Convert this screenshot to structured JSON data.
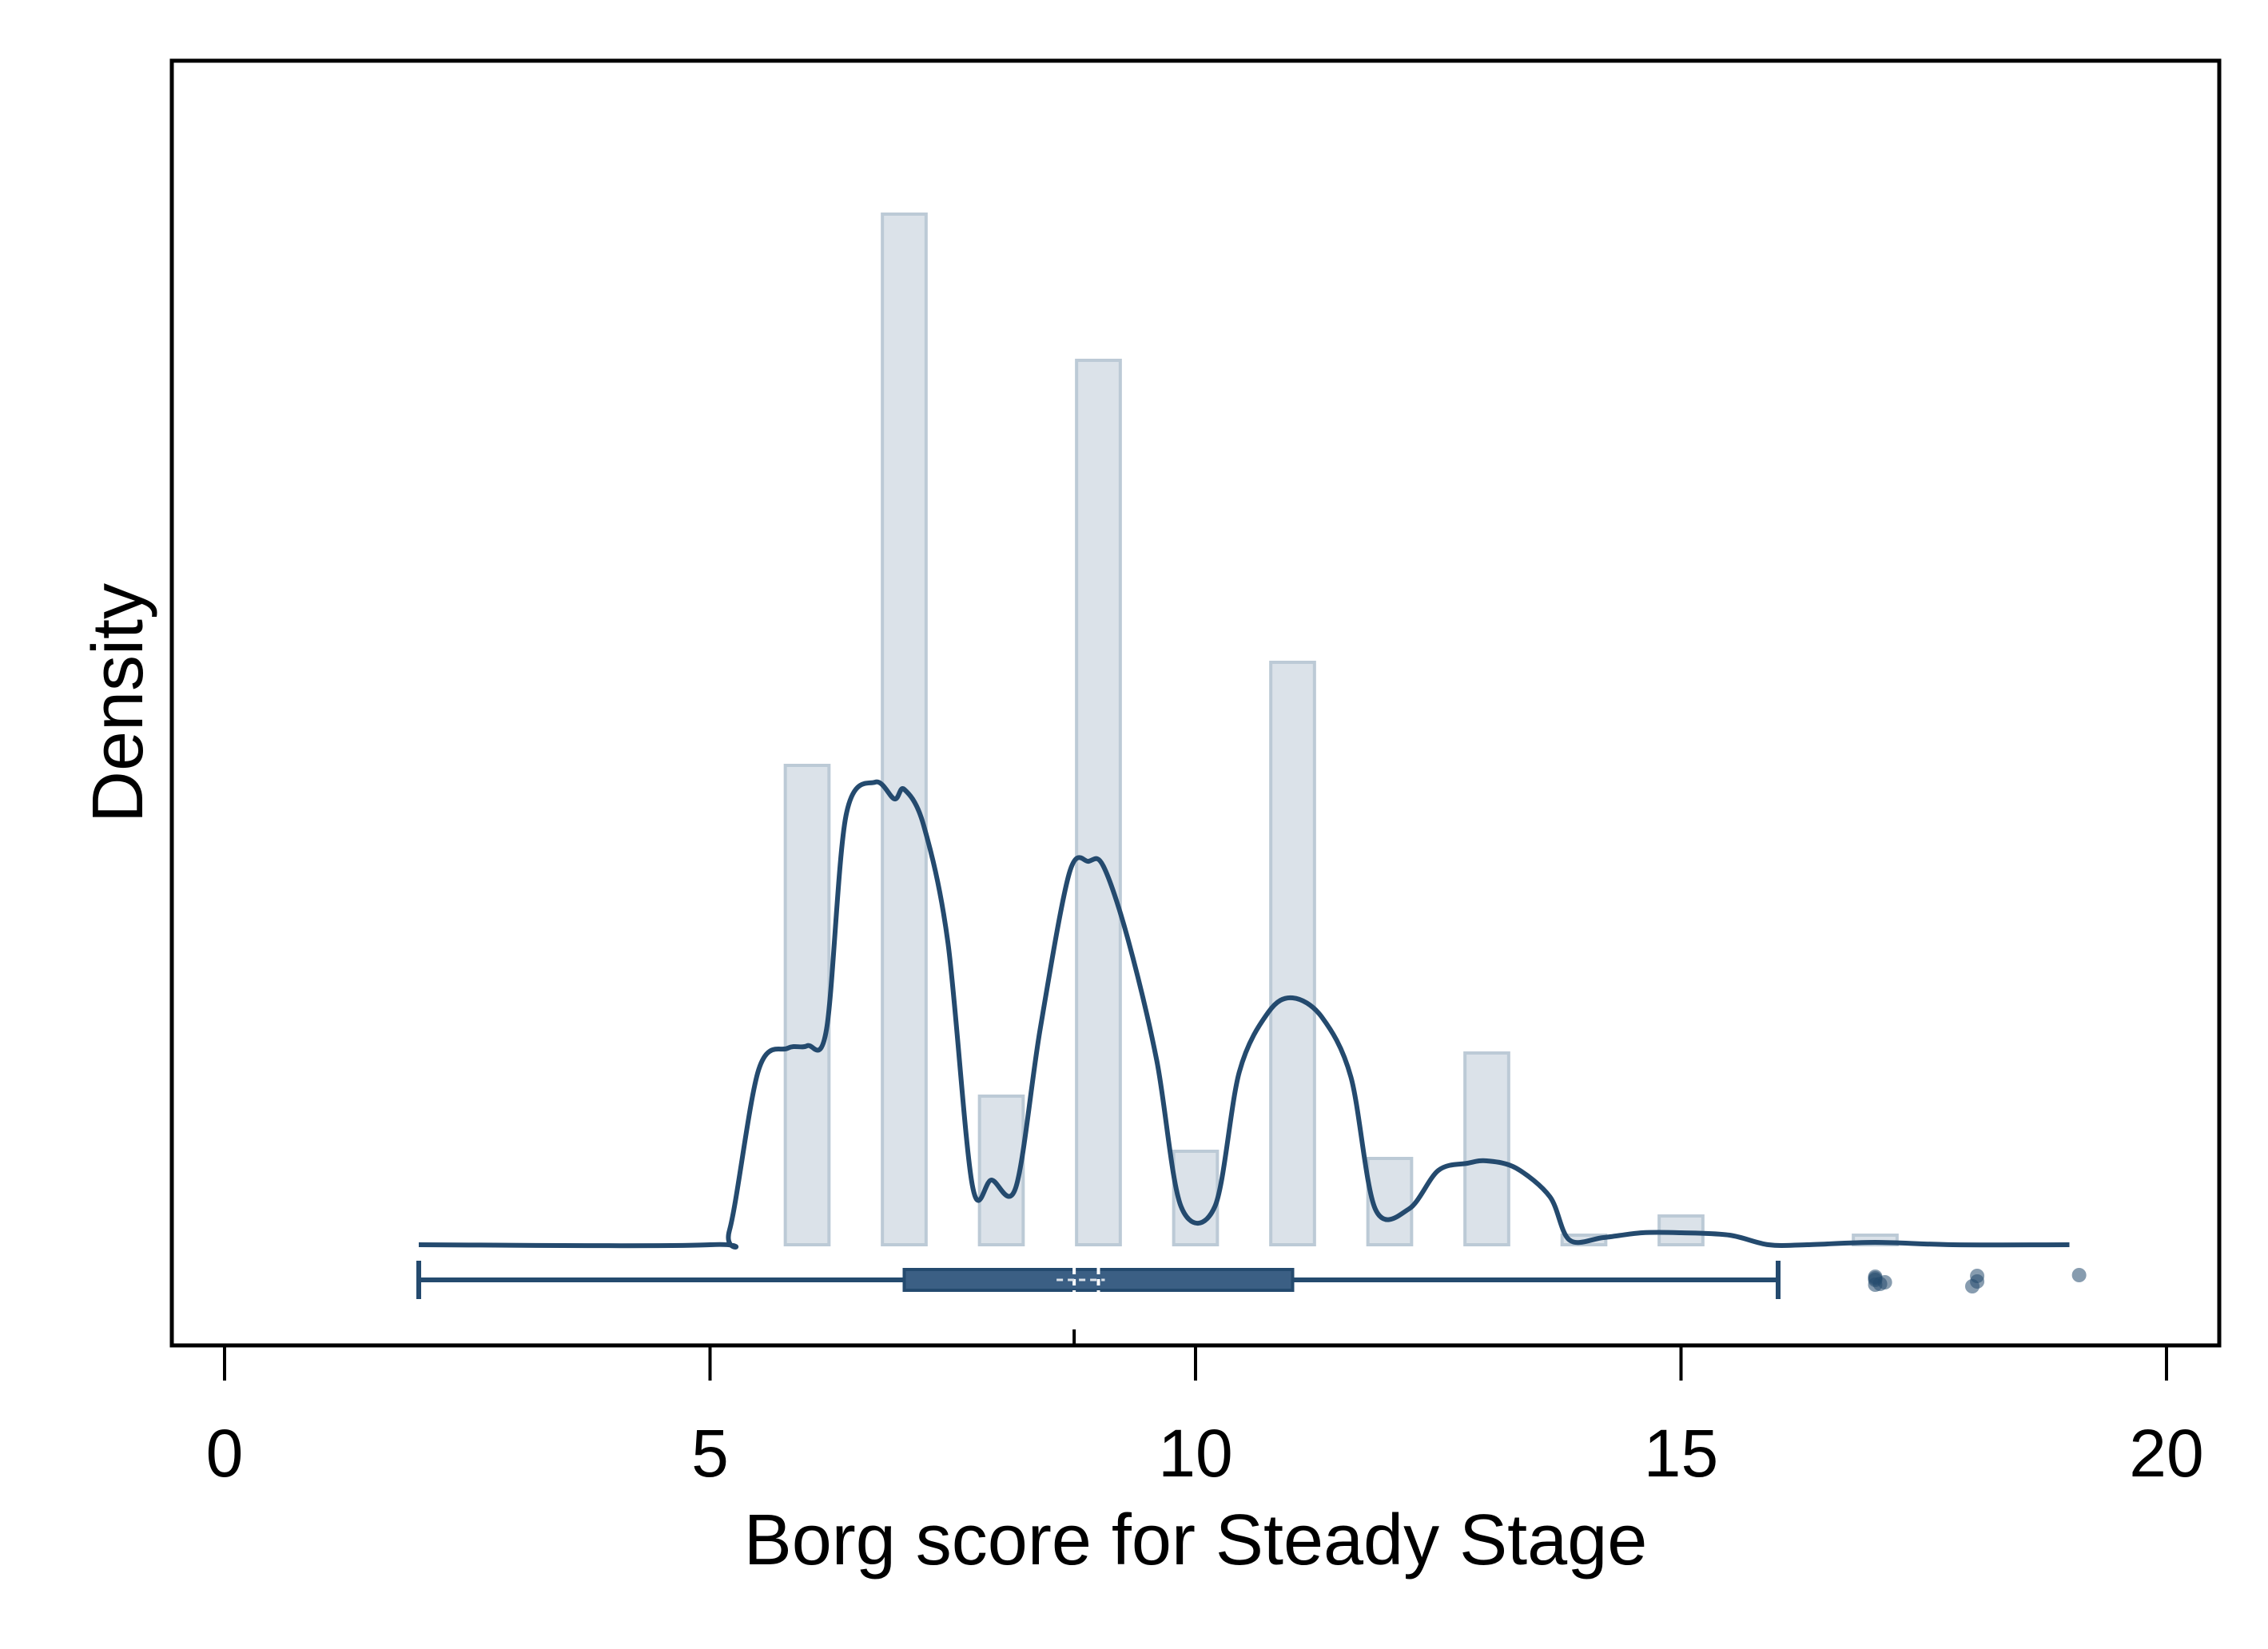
{
  "chart_data": {
    "type": "histogram",
    "title": "",
    "xlabel": "Borg score for Steady Stage",
    "ylabel": "Density",
    "xlim": [
      -0.5,
      20.5
    ],
    "x_ticks": [
      0,
      5,
      10,
      15,
      20
    ],
    "x_tick_labels": [
      "0",
      "5",
      "10",
      "15",
      "20"
    ],
    "y_axis_labels_shown": false,
    "colors": {
      "bar_fill": "#dbe2e9",
      "bar_stroke": "#bccad6",
      "accent": "#244a6e",
      "box_fill": "#3b5f84"
    },
    "histogram": {
      "bin_width": 0.45,
      "bins": [
        {
          "center": 6.0,
          "density": 0.2
        },
        {
          "center": 7.0,
          "density": 0.43
        },
        {
          "center": 8.0,
          "density": 0.062
        },
        {
          "center": 9.0,
          "density": 0.369
        },
        {
          "center": 10.0,
          "density": 0.039
        },
        {
          "center": 11.0,
          "density": 0.243
        },
        {
          "center": 12.0,
          "density": 0.036
        },
        {
          "center": 13.0,
          "density": 0.08
        },
        {
          "center": 14.0,
          "density": 0.004
        },
        {
          "center": 15.0,
          "density": 0.012
        },
        {
          "center": 17.0,
          "density": 0.004
        }
      ]
    },
    "density_curve": {
      "x": [
        2.0,
        5.0,
        5.2,
        5.5,
        5.8,
        6.0,
        6.2,
        6.4,
        6.7,
        6.9,
        7.0,
        7.2,
        7.45,
        7.7,
        7.9,
        8.15,
        8.4,
        8.7,
        8.9,
        9.05,
        9.3,
        9.6,
        9.85,
        10.2,
        10.45,
        10.75,
        11.0,
        11.3,
        11.6,
        11.85,
        12.2,
        12.5,
        12.8,
        13.0,
        13.3,
        13.65,
        13.85,
        14.2,
        14.6,
        15.0,
        15.5,
        15.9,
        16.3,
        17.0,
        17.8,
        19.0
      ],
      "y": [
        0.0,
        0.0,
        0.006,
        0.073,
        0.082,
        0.083,
        0.09,
        0.179,
        0.193,
        0.186,
        0.19,
        0.175,
        0.126,
        0.025,
        0.027,
        0.024,
        0.09,
        0.155,
        0.16,
        0.158,
        0.128,
        0.077,
        0.016,
        0.016,
        0.072,
        0.097,
        0.103,
        0.095,
        0.07,
        0.015,
        0.015,
        0.031,
        0.034,
        0.035,
        0.032,
        0.02,
        0.002,
        0.003,
        0.005,
        0.005,
        0.004,
        0.0,
        0.0,
        0.001,
        0.0,
        0.0
      ]
    },
    "boxplot": {
      "whisker_low": 2,
      "q1": 7,
      "median": 8.75,
      "mean": 9,
      "q3": 11,
      "whisker_high": 16,
      "outliers": [
        17.0,
        17.0,
        17.0,
        17.1,
        17.0,
        17.05,
        18.0,
        18.05,
        18.05,
        19.1
      ]
    },
    "rug_marks": [
      8.75
    ]
  }
}
